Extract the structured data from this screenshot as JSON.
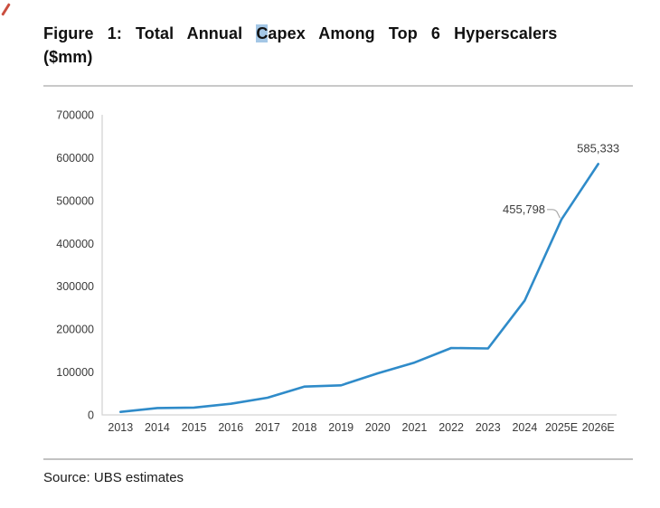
{
  "header": {
    "title_line1_prefix": "Figure 1: Total Annual ",
    "title_highlight_char": "C",
    "title_line1_suffix": "apex Among Top 6 Hyperscalers",
    "title_line2": "($mm)"
  },
  "footer": {
    "source": "Source: UBS estimates"
  },
  "chart_data": {
    "type": "line",
    "title": "Figure 1: Total Annual Capex Among Top 6 Hyperscalers ($mm)",
    "categories": [
      "2013",
      "2014",
      "2015",
      "2016",
      "2017",
      "2018",
      "2019",
      "2020",
      "2021",
      "2022",
      "2023",
      "2024",
      "2025E",
      "2026E"
    ],
    "series": [
      {
        "name": "Total Annual Capex Top 6 Hyperscalers ($mm)",
        "values": [
          7000,
          16000,
          17000,
          26000,
          40000,
          66000,
          69000,
          97000,
          122000,
          156000,
          155000,
          267000,
          455798,
          585333
        ]
      }
    ],
    "ylim": [
      0,
      700000
    ],
    "ytick_step": 100000,
    "ytick_labels": [
      "0",
      "100000",
      "200000",
      "300000",
      "400000",
      "500000",
      "600000",
      "700000"
    ],
    "grid": false,
    "legend": "none",
    "line_color": "#2f8bc9",
    "axis_color": "#d4d4d4",
    "tick_label_color": "#3a3a3a",
    "data_label_color": "#3d3d3d",
    "leader_line_color": "#a9a9a9",
    "data_labels": [
      {
        "category": "2025E",
        "text": "455,798",
        "position": "left-leader"
      },
      {
        "category": "2026E",
        "text": "585,333",
        "position": "above"
      }
    ]
  }
}
